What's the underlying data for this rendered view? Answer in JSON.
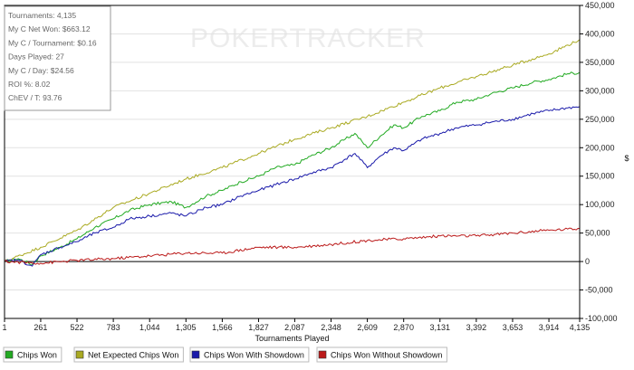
{
  "chart_data": {
    "type": "line",
    "watermark": "POKERTRACKER",
    "xlabel": "Tournaments Played",
    "ylabel": "$",
    "xlim": [
      1,
      4135
    ],
    "ylim": [
      -100000,
      450000
    ],
    "x_ticks": [
      "1",
      "261",
      "522",
      "783",
      "1,044",
      "1,305",
      "1,566",
      "1,827",
      "2,087",
      "2,348",
      "2,609",
      "2,870",
      "3,131",
      "3,392",
      "3,653",
      "3,914",
      "4,135"
    ],
    "y_ticks": [
      "450,000",
      "400,000",
      "350,000",
      "300,000",
      "250,000",
      "200,000",
      "150,000",
      "100,000",
      "50,000",
      "0",
      "-50,000",
      "-100,000"
    ],
    "stats": [
      "Tournaments: 4,135",
      "My C Net Won: $663.12",
      "My C / Tournament: $0.16",
      "Days Played: 27",
      "My C / Day: $24.56",
      "ROI %: 8.02",
      "ChEV / T: 93.76"
    ],
    "series": [
      {
        "name": "Chips Won",
        "color": "#22aa22",
        "x": [
          1,
          100,
          200,
          261,
          400,
          522,
          650,
          783,
          900,
          1044,
          1200,
          1305,
          1450,
          1566,
          1700,
          1827,
          1950,
          2087,
          2200,
          2348,
          2450,
          2520,
          2609,
          2700,
          2800,
          2870,
          3000,
          3131,
          3250,
          3392,
          3500,
          3653,
          3800,
          3914,
          4050,
          4135
        ],
        "values": [
          0,
          5000,
          -5000,
          10000,
          25000,
          40000,
          60000,
          75000,
          90000,
          100000,
          105000,
          95000,
          115000,
          125000,
          140000,
          150000,
          165000,
          170000,
          185000,
          200000,
          215000,
          225000,
          200000,
          220000,
          240000,
          235000,
          255000,
          265000,
          280000,
          285000,
          295000,
          305000,
          315000,
          320000,
          330000,
          332000
        ]
      },
      {
        "name": "Net Expected Chips Won",
        "color": "#aaaa22",
        "x": [
          1,
          261,
          522,
          783,
          1044,
          1305,
          1566,
          1827,
          2087,
          2348,
          2609,
          2870,
          3131,
          3392,
          3653,
          3914,
          4135
        ],
        "values": [
          0,
          25000,
          55000,
          95000,
          120000,
          145000,
          165000,
          190000,
          215000,
          235000,
          255000,
          280000,
          305000,
          325000,
          345000,
          365000,
          390000
        ]
      },
      {
        "name": "Chips Won With Showdown",
        "color": "#1a1aaa",
        "x": [
          1,
          100,
          200,
          261,
          400,
          522,
          650,
          783,
          900,
          1044,
          1200,
          1305,
          1450,
          1566,
          1700,
          1827,
          1950,
          2087,
          2200,
          2348,
          2450,
          2520,
          2609,
          2700,
          2800,
          2870,
          3000,
          3131,
          3250,
          3392,
          3500,
          3653,
          3800,
          3914,
          4050,
          4135
        ],
        "values": [
          0,
          3000,
          -8000,
          12000,
          25000,
          35000,
          50000,
          60000,
          75000,
          80000,
          85000,
          80000,
          95000,
          100000,
          115000,
          125000,
          135000,
          145000,
          155000,
          165000,
          180000,
          190000,
          165000,
          185000,
          200000,
          195000,
          215000,
          225000,
          235000,
          240000,
          245000,
          250000,
          260000,
          265000,
          270000,
          272000
        ]
      },
      {
        "name": "Chips Won Without Showdown",
        "color": "#bb1a1a",
        "x": [
          1,
          261,
          522,
          783,
          1044,
          1305,
          1566,
          1827,
          2087,
          2348,
          2609,
          2870,
          3131,
          3392,
          3653,
          3914,
          4135
        ],
        "values": [
          0,
          -3000,
          2000,
          5000,
          10000,
          15000,
          15000,
          25000,
          25000,
          30000,
          37000,
          40000,
          45000,
          45000,
          50000,
          55000,
          58000
        ]
      }
    ]
  }
}
